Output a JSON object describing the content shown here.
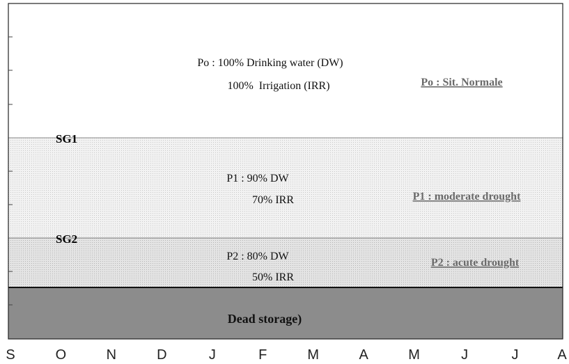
{
  "zones": [
    {
      "lines": [
        "Po : 100% Drinking water (DW)",
        "100%  Irrigation (IRR)"
      ],
      "label": "Po : Sit. Normale"
    },
    {
      "boundary": "SG1",
      "lines": [
        "P1 : 90% DW",
        "70% IRR"
      ],
      "label": "P1 : moderate drought"
    },
    {
      "boundary": "SG2",
      "lines": [
        "P2 : 80% DW",
        "50% IRR"
      ],
      "label": "P2 : acute drought"
    },
    {
      "label": "Dead storage)"
    }
  ],
  "months": [
    "S",
    "O",
    "N",
    "D",
    "J",
    "F",
    "M",
    "A",
    "M",
    "J",
    "J",
    "A"
  ]
}
